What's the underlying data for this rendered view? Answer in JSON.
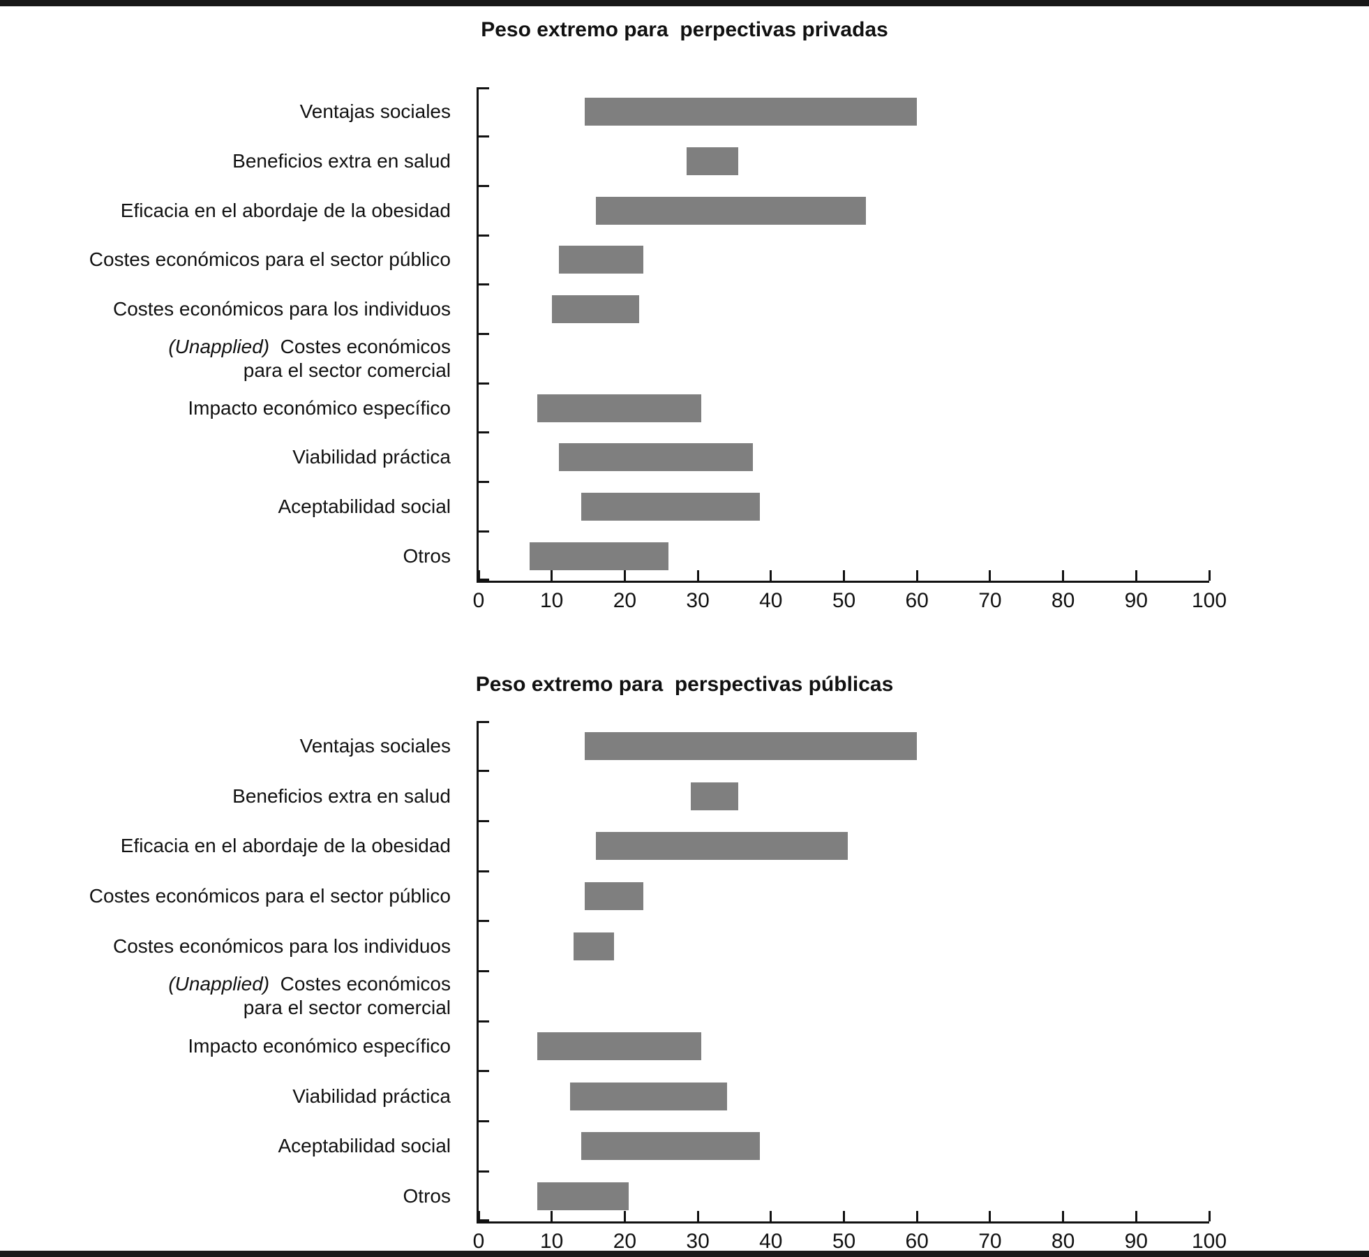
{
  "page": {
    "background": "#ffffff",
    "rule_color": "#181818",
    "text_color": "#111111"
  },
  "bar_color": "#7f7f7f",
  "axis": {
    "min": 0,
    "max": 100,
    "tick_step": 10,
    "tick_labels": [
      "0",
      "10",
      "20",
      "30",
      "40",
      "50",
      "60",
      "70",
      "80",
      "90",
      "100"
    ]
  },
  "chart_data": [
    {
      "type": "bar",
      "orientation": "horizontal-range",
      "title": "Peso extremo para  perpectivas privadas",
      "xlabel": "",
      "ylabel": "",
      "xlim": [
        0,
        100
      ],
      "grid": false,
      "legend": null,
      "categories": [
        {
          "lines": [
            [
              {
                "t": "Ventajas sociales"
              }
            ]
          ]
        },
        {
          "lines": [
            [
              {
                "t": "Beneficios extra en salud"
              }
            ]
          ]
        },
        {
          "lines": [
            [
              {
                "t": "Eficacia en el abordaje de la obesidad"
              }
            ]
          ]
        },
        {
          "lines": [
            [
              {
                "t": "Costes económicos para el sector público"
              }
            ]
          ]
        },
        {
          "lines": [
            [
              {
                "t": "Costes económicos para los individuos"
              }
            ]
          ]
        },
        {
          "lines": [
            [
              {
                "t": "(Unapplied)",
                "i": true
              },
              {
                "t": "  Costes económicos"
              }
            ],
            [
              {
                "t": "para el sector comercial"
              }
            ]
          ]
        },
        {
          "lines": [
            [
              {
                "t": "Impacto económico específico"
              }
            ]
          ]
        },
        {
          "lines": [
            [
              {
                "t": "Viabilidad práctica"
              }
            ]
          ]
        },
        {
          "lines": [
            [
              {
                "t": "Aceptabilidad social"
              }
            ]
          ]
        },
        {
          "lines": [
            [
              {
                "t": "Otros"
              }
            ]
          ]
        }
      ],
      "ranges": [
        [
          14.5,
          60
        ],
        [
          28.5,
          35.5
        ],
        [
          16,
          53
        ],
        [
          11,
          22.5
        ],
        [
          10,
          22
        ],
        null,
        [
          8,
          30.5
        ],
        [
          11,
          37.5
        ],
        [
          14,
          38.5
        ],
        [
          7,
          26
        ]
      ]
    },
    {
      "type": "bar",
      "orientation": "horizontal-range",
      "title": "Peso extremo para  perspectivas públicas",
      "xlabel": "",
      "ylabel": "",
      "xlim": [
        0,
        100
      ],
      "grid": false,
      "legend": null,
      "categories": [
        {
          "lines": [
            [
              {
                "t": "Ventajas sociales"
              }
            ]
          ]
        },
        {
          "lines": [
            [
              {
                "t": "Beneficios extra en salud"
              }
            ]
          ]
        },
        {
          "lines": [
            [
              {
                "t": "Eficacia en el abordaje de la obesidad"
              }
            ]
          ]
        },
        {
          "lines": [
            [
              {
                "t": "Costes económicos para el sector público"
              }
            ]
          ]
        },
        {
          "lines": [
            [
              {
                "t": "Costes económicos para los individuos"
              }
            ]
          ]
        },
        {
          "lines": [
            [
              {
                "t": "(Unapplied)",
                "i": true
              },
              {
                "t": "  Costes económicos"
              }
            ],
            [
              {
                "t": "para el sector comercial"
              }
            ]
          ]
        },
        {
          "lines": [
            [
              {
                "t": "Impacto económico específico"
              }
            ]
          ]
        },
        {
          "lines": [
            [
              {
                "t": "Viabilidad práctica"
              }
            ]
          ]
        },
        {
          "lines": [
            [
              {
                "t": "Aceptabilidad social"
              }
            ]
          ]
        },
        {
          "lines": [
            [
              {
                "t": "Otros"
              }
            ]
          ]
        }
      ],
      "ranges": [
        [
          14.5,
          60
        ],
        [
          29,
          35.5
        ],
        [
          16,
          50.5
        ],
        [
          14.5,
          22.5
        ],
        [
          13,
          18.5
        ],
        null,
        [
          8,
          30.5
        ],
        [
          12.5,
          34
        ],
        [
          14,
          38.5
        ],
        [
          8,
          20.5
        ]
      ]
    }
  ]
}
